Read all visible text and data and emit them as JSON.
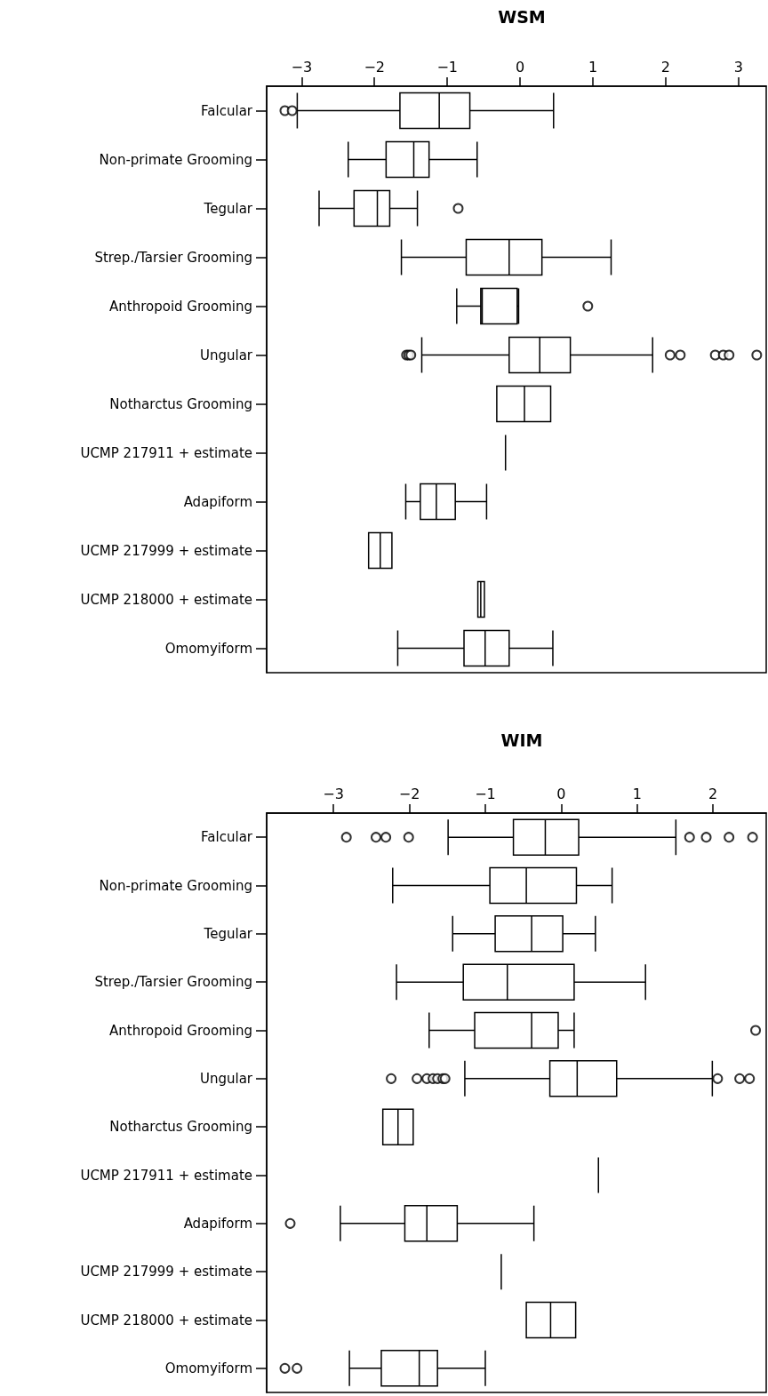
{
  "chart_data": [
    {
      "type": "box",
      "title": "WSM",
      "orientation": "horizontal",
      "xlim": [
        -3.48,
        3.38
      ],
      "xticks": [
        -3,
        -2,
        -1,
        0,
        1,
        2,
        3
      ],
      "categories": [
        "Falcular",
        "Non-primate Grooming",
        "Tegular",
        "Strep./Tarsier Grooming",
        "Anthropoid Grooming",
        "Ungular",
        "Notharctus Grooming",
        "UCMP 217911 + estimate",
        "Adapiform",
        "UCMP 217999 + estimate",
        "UCMP 218000 + estimate",
        "Omomyiform"
      ],
      "boxes": [
        {
          "low": -3.06,
          "q1": -1.65,
          "median": -1.11,
          "q3": -0.69,
          "high": 0.46,
          "outliers": [
            -3.23,
            -3.13
          ]
        },
        {
          "low": -2.36,
          "q1": -1.84,
          "median": -1.46,
          "q3": -1.25,
          "high": -0.59
        },
        {
          "low": -2.76,
          "q1": -2.28,
          "median": -1.96,
          "q3": -1.79,
          "high": -1.41,
          "outliers": [
            -0.85
          ]
        },
        {
          "low": -1.63,
          "q1": -0.74,
          "median": -0.15,
          "q3": 0.3,
          "high": 1.25
        },
        {
          "low": -0.87,
          "q1": -0.54,
          "median": -0.52,
          "q3": -0.04,
          "high": -0.02,
          "outliers": [
            0.93
          ]
        },
        {
          "low": -1.35,
          "q1": -0.15,
          "median": 0.27,
          "q3": 0.69,
          "high": 1.82,
          "outliers": [
            -1.56,
            -1.53,
            -1.5,
            2.06,
            2.2,
            2.68,
            2.79,
            2.87,
            3.25
          ]
        },
        {
          "low": -0.32,
          "q1": -0.32,
          "median": 0.06,
          "q3": 0.42,
          "high": 0.42
        },
        {
          "low": -0.2,
          "q1": -0.2,
          "median": -0.2,
          "q3": -0.2,
          "high": -0.2
        },
        {
          "low": -1.57,
          "q1": -1.37,
          "median": -1.15,
          "q3": -0.89,
          "high": -0.46
        },
        {
          "low": -2.08,
          "q1": -2.08,
          "median": -1.92,
          "q3": -1.76,
          "high": -1.76
        },
        {
          "low": -0.58,
          "q1": -0.58,
          "median": -0.54,
          "q3": -0.49,
          "high": -0.49
        },
        {
          "low": -1.68,
          "q1": -0.77,
          "median": -0.48,
          "q3": -0.15,
          "high": 0.45
        }
      ]
    },
    {
      "type": "box",
      "title": "WIM",
      "orientation": "horizontal",
      "xlim": [
        -3.88,
        2.7
      ],
      "xticks": [
        -3,
        -2,
        -1,
        0,
        1,
        2
      ],
      "categories": [
        "Falcular",
        "Non-primate Grooming",
        "Tegular",
        "Strep./Tarsier Grooming",
        "Anthropoid Grooming",
        "Ungular",
        "Notharctus Grooming",
        "UCMP 217911 + estimate",
        "Adapiform",
        "UCMP 217999 + estimate",
        "UCMP 218000 + estimate",
        "Omomyiform"
      ],
      "boxes": [
        {
          "low": -1.49,
          "q1": -0.63,
          "median": -0.21,
          "q3": 0.23,
          "high": 1.51,
          "outliers": [
            -2.83,
            -2.44,
            -2.31,
            -2.01,
            1.69,
            1.91,
            2.21,
            2.52
          ]
        },
        {
          "low": -2.22,
          "q1": -0.94,
          "median": -0.46,
          "q3": 0.2,
          "high": 0.67
        },
        {
          "low": -1.43,
          "q1": -0.87,
          "median": -0.39,
          "q3": 0.02,
          "high": 0.45
        },
        {
          "low": -2.17,
          "q1": -1.29,
          "median": -0.71,
          "q3": 0.17,
          "high": 1.11
        },
        {
          "low": -1.74,
          "q1": -1.14,
          "median": -0.39,
          "q3": -0.04,
          "high": 0.17,
          "outliers": [
            2.56
          ]
        },
        {
          "low": -1.27,
          "q1": -0.15,
          "median": 0.21,
          "q3": 0.73,
          "high": 1.99,
          "outliers": [
            -2.24,
            -1.9,
            -1.77,
            -1.69,
            -1.63,
            -1.56,
            -1.53,
            2.06,
            2.35,
            2.48
          ]
        },
        {
          "low": -2.35,
          "q1": -2.35,
          "median": -2.15,
          "q3": -1.95,
          "high": -1.95
        },
        {
          "low": 0.49,
          "q1": 0.49,
          "median": 0.49,
          "q3": 0.49,
          "high": 0.49
        },
        {
          "low": -2.91,
          "q1": -2.06,
          "median": -1.77,
          "q3": -1.37,
          "high": -0.36,
          "outliers": [
            -3.57
          ]
        },
        {
          "low": -0.79,
          "q1": -0.79,
          "median": -0.79,
          "q3": -0.79,
          "high": -0.79
        },
        {
          "low": -0.46,
          "q1": -0.46,
          "median": -0.14,
          "q3": 0.19,
          "high": 0.19
        },
        {
          "low": -2.79,
          "q1": -2.37,
          "median": -1.87,
          "q3": -1.63,
          "high": -1.0,
          "outliers": [
            -3.64,
            -3.48
          ]
        }
      ]
    }
  ]
}
